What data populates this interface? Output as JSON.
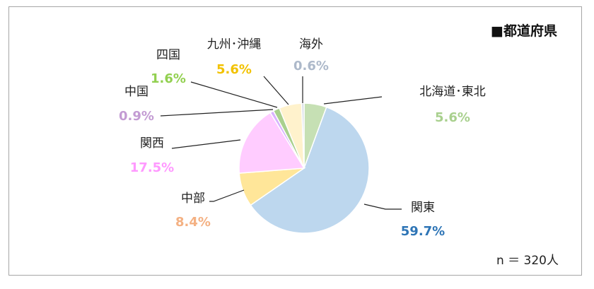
{
  "chart_data": {
    "type": "pie",
    "title": "■都道府県",
    "note": "n ＝ 320人",
    "slices": [
      {
        "name": "北海道･東北",
        "value": 5.6,
        "value_label": "5.6%",
        "color": "#c6e0b4",
        "text_color": "#a9d08e"
      },
      {
        "name": "関東",
        "value": 59.7,
        "value_label": "59.7%",
        "color": "#bdd7ee",
        "text_color": "#2e75b6"
      },
      {
        "name": "中部",
        "value": 8.4,
        "value_label": "8.4%",
        "color": "#ffe699",
        "text_color": "#f4b183"
      },
      {
        "name": "関西",
        "value": 17.5,
        "value_label": "17.5%",
        "color": "#ffccff",
        "text_color": "#ff99ff"
      },
      {
        "name": "中国",
        "value": 0.9,
        "value_label": "0.9%",
        "color": "#d9b3ff",
        "text_color": "#c39bd3"
      },
      {
        "name": "四国",
        "value": 1.6,
        "value_label": "1.6%",
        "color": "#a9d08e",
        "text_color": "#92d050"
      },
      {
        "name": "九州･沖縄",
        "value": 5.6,
        "value_label": "5.6%",
        "color": "#fff2cc",
        "text_color": "#f2c200"
      },
      {
        "name": "海外",
        "value": 0.6,
        "value_label": "0.6%",
        "color": "#d6dce4",
        "text_color": "#adb9ca"
      }
    ]
  }
}
